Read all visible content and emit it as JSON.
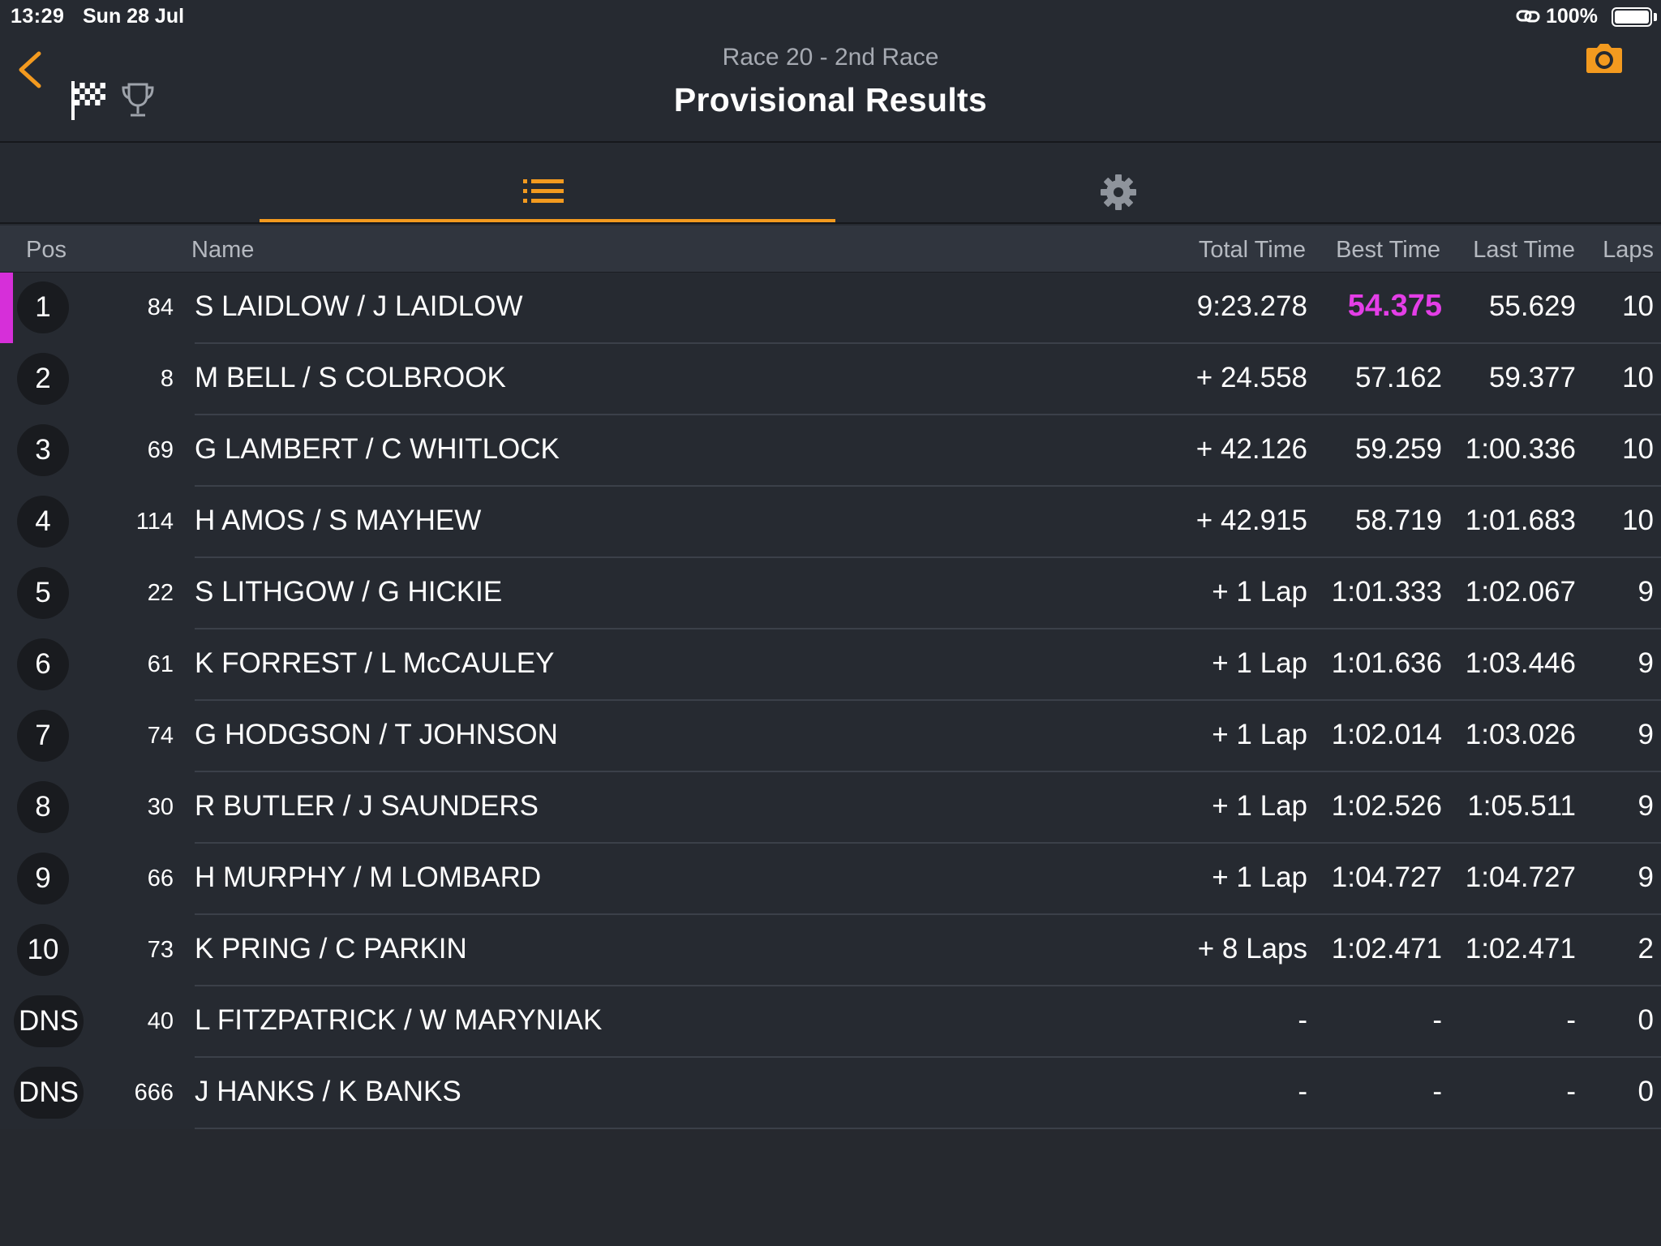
{
  "status_bar": {
    "time": "13:29",
    "date": "Sun 28 Jul",
    "battery_pct": "100%"
  },
  "header": {
    "subtitle": "Race 20 - 2nd Race",
    "title": "Provisional Results"
  },
  "colors": {
    "accent": "#f39a1f",
    "fastest": "#e43ee7",
    "background": "#262a31"
  },
  "columns": {
    "pos": "Pos",
    "name": "Name",
    "total": "Total Time",
    "best": "Best Time",
    "last": "Last Time",
    "laps": "Laps"
  },
  "results": [
    {
      "pos": "1",
      "num": "84",
      "name": "S LAIDLOW / J LAIDLOW",
      "total": "9:23.278",
      "best": "54.375",
      "last": "55.629",
      "laps": "10",
      "fastest": true
    },
    {
      "pos": "2",
      "num": "8",
      "name": "M BELL / S COLBROOK",
      "total": "+ 24.558",
      "best": "57.162",
      "last": "59.377",
      "laps": "10"
    },
    {
      "pos": "3",
      "num": "69",
      "name": "G LAMBERT / C WHITLOCK",
      "total": "+ 42.126",
      "best": "59.259",
      "last": "1:00.336",
      "laps": "10"
    },
    {
      "pos": "4",
      "num": "114",
      "name": "H AMOS / S MAYHEW",
      "total": "+ 42.915",
      "best": "58.719",
      "last": "1:01.683",
      "laps": "10"
    },
    {
      "pos": "5",
      "num": "22",
      "name": "S LITHGOW / G HICKIE",
      "total": "+ 1 Lap",
      "best": "1:01.333",
      "last": "1:02.067",
      "laps": "9"
    },
    {
      "pos": "6",
      "num": "61",
      "name": "K FORREST / L McCAULEY",
      "total": "+ 1 Lap",
      "best": "1:01.636",
      "last": "1:03.446",
      "laps": "9"
    },
    {
      "pos": "7",
      "num": "74",
      "name": "G HODGSON / T JOHNSON",
      "total": "+ 1 Lap",
      "best": "1:02.014",
      "last": "1:03.026",
      "laps": "9"
    },
    {
      "pos": "8",
      "num": "30",
      "name": "R BUTLER / J SAUNDERS",
      "total": "+ 1 Lap",
      "best": "1:02.526",
      "last": "1:05.511",
      "laps": "9"
    },
    {
      "pos": "9",
      "num": "66",
      "name": "H MURPHY / M LOMBARD",
      "total": "+ 1 Lap",
      "best": "1:04.727",
      "last": "1:04.727",
      "laps": "9"
    },
    {
      "pos": "10",
      "num": "73",
      "name": "K PRING / C PARKIN",
      "total": "+ 8 Laps",
      "best": "1:02.471",
      "last": "1:02.471",
      "laps": "2"
    },
    {
      "pos": "DNS",
      "num": "40",
      "name": "L FITZPATRICK / W MARYNIAK",
      "total": "-",
      "best": "-",
      "last": "-",
      "laps": "0"
    },
    {
      "pos": "DNS",
      "num": "666",
      "name": "J HANKS / K BANKS",
      "total": "-",
      "best": "-",
      "last": "-",
      "laps": "0"
    }
  ]
}
